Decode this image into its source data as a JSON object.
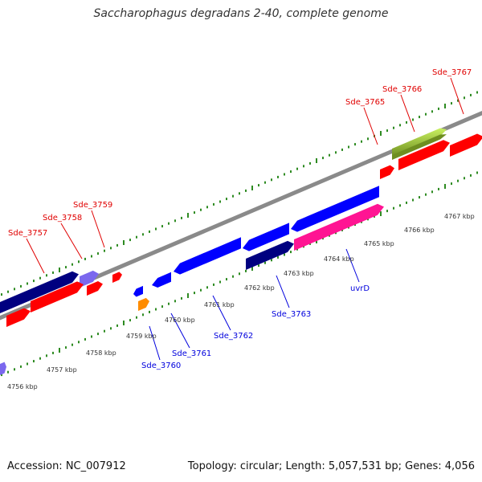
{
  "title": "Saccharophagus degradans 2-40, complete genome",
  "footer": {
    "accession": "Accession: NC_007912",
    "summary": "Topology: circular; Length: 5,057,531 bp; Genes: 4,056"
  },
  "colors": {
    "background": "#ffffff",
    "backbone": "#8a8a8a",
    "tick_marks": "#2e8b22",
    "forward_label": "#e00000",
    "reverse_label": "#0000dd",
    "scale_label": "#333333",
    "gene_red": "#ff0000",
    "gene_navy": "#000080",
    "gene_blue": "#0000ff",
    "gene_slate": "#7b68ee",
    "gene_orange": "#ff8c00",
    "gene_pink": "#ff1493",
    "gene_green": "#9acd32"
  },
  "scale": {
    "unit": "kbp",
    "labels": [
      "4756 kbp",
      "4757 kbp",
      "4758 kbp",
      "4759 kbp",
      "4760 kbp",
      "4761 kbp",
      "4762 kbp",
      "4763 kbp",
      "4764 kbp",
      "4765 kbp",
      "4766 kbp",
      "4767 kbp"
    ]
  },
  "forward_genes": [
    {
      "label": "Sde_3757",
      "color": "red"
    },
    {
      "label": "Sde_3758",
      "color": "slate"
    },
    {
      "label": "Sde_3759",
      "color": "red"
    },
    {
      "label": "Sde_3765",
      "color": "red"
    },
    {
      "label": "Sde_3766",
      "color": "red"
    },
    {
      "label": "Sde_3767",
      "color": "green"
    }
  ],
  "reverse_genes": [
    {
      "label": "Sde_3760",
      "color": "orange"
    },
    {
      "label": "Sde_3761",
      "color": "blue"
    },
    {
      "label": "Sde_3762",
      "color": "blue"
    },
    {
      "label": "Sde_3763",
      "color": "navy"
    },
    {
      "label": "uvrD",
      "color": "pink"
    }
  ]
}
